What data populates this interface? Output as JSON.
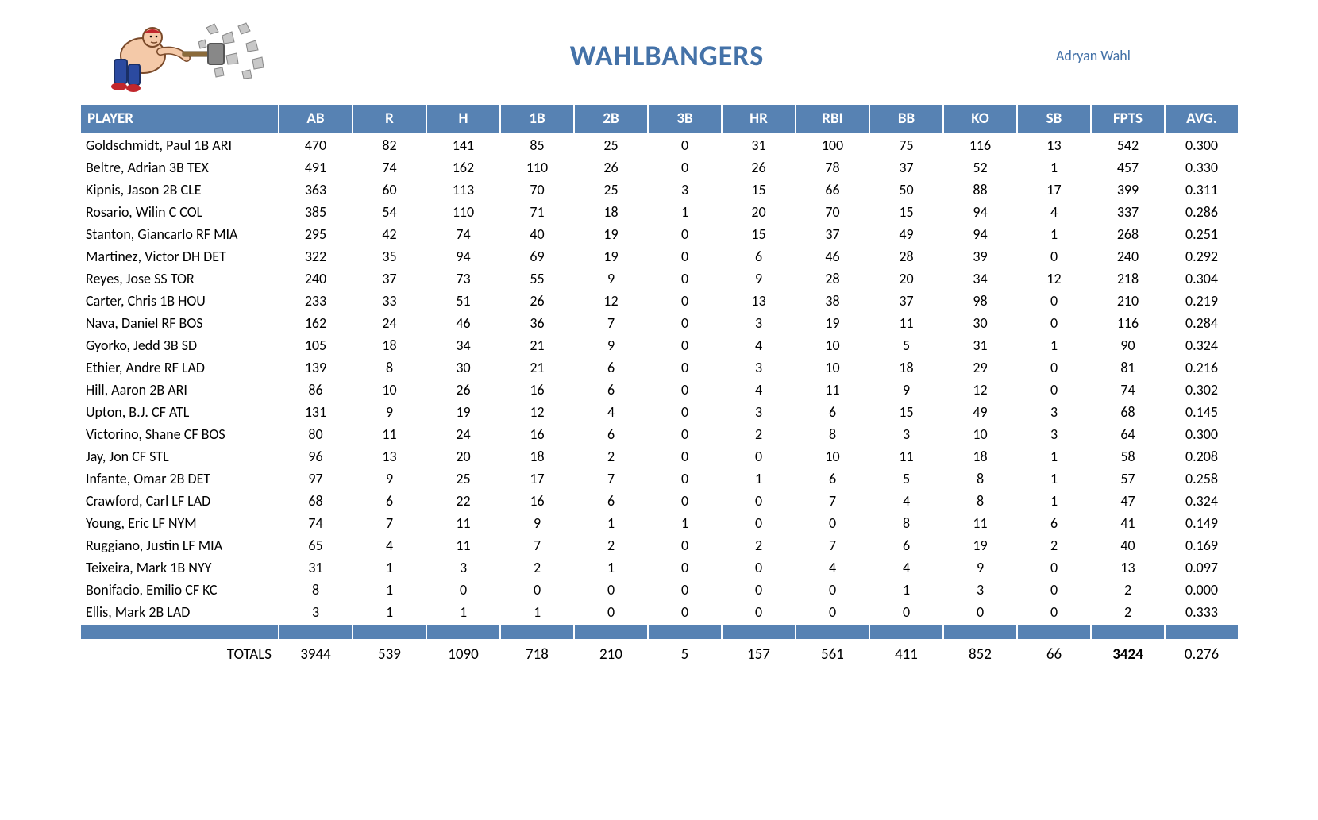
{
  "team": {
    "title": "WAHLBANGERS",
    "owner": "Adryan Wahl"
  },
  "styling": {
    "header_bg": "#5782b3",
    "header_fg": "#ffffff",
    "title_color": "#4472a8",
    "owner_color": "#4472a8",
    "body_bg": "#ffffff",
    "font_family": "Calibri",
    "title_fontsize": 36,
    "header_fontsize": 19,
    "cell_fontsize": 18
  },
  "columns": [
    {
      "key": "player",
      "label": "PLAYER",
      "align": "left"
    },
    {
      "key": "ab",
      "label": "AB"
    },
    {
      "key": "r",
      "label": "R"
    },
    {
      "key": "h",
      "label": "H"
    },
    {
      "key": "b1",
      "label": "1B"
    },
    {
      "key": "b2",
      "label": "2B"
    },
    {
      "key": "b3",
      "label": "3B"
    },
    {
      "key": "hr",
      "label": "HR"
    },
    {
      "key": "rbi",
      "label": "RBI"
    },
    {
      "key": "bb",
      "label": "BB"
    },
    {
      "key": "ko",
      "label": "KO"
    },
    {
      "key": "sb",
      "label": "SB"
    },
    {
      "key": "fpts",
      "label": "FPTS"
    },
    {
      "key": "avg",
      "label": "AVG."
    }
  ],
  "rows": [
    {
      "player": "Goldschmidt, Paul 1B ARI",
      "ab": "470",
      "r": "82",
      "h": "141",
      "b1": "85",
      "b2": "25",
      "b3": "0",
      "hr": "31",
      "rbi": "100",
      "bb": "75",
      "ko": "116",
      "sb": "13",
      "fpts": "542",
      "avg": "0.300"
    },
    {
      "player": "Beltre, Adrian 3B TEX",
      "ab": "491",
      "r": "74",
      "h": "162",
      "b1": "110",
      "b2": "26",
      "b3": "0",
      "hr": "26",
      "rbi": "78",
      "bb": "37",
      "ko": "52",
      "sb": "1",
      "fpts": "457",
      "avg": "0.330"
    },
    {
      "player": "Kipnis, Jason 2B CLE",
      "ab": "363",
      "r": "60",
      "h": "113",
      "b1": "70",
      "b2": "25",
      "b3": "3",
      "hr": "15",
      "rbi": "66",
      "bb": "50",
      "ko": "88",
      "sb": "17",
      "fpts": "399",
      "avg": "0.311"
    },
    {
      "player": "Rosario, Wilin C COL",
      "ab": "385",
      "r": "54",
      "h": "110",
      "b1": "71",
      "b2": "18",
      "b3": "1",
      "hr": "20",
      "rbi": "70",
      "bb": "15",
      "ko": "94",
      "sb": "4",
      "fpts": "337",
      "avg": "0.286"
    },
    {
      "player": "Stanton, Giancarlo RF MIA",
      "ab": "295",
      "r": "42",
      "h": "74",
      "b1": "40",
      "b2": "19",
      "b3": "0",
      "hr": "15",
      "rbi": "37",
      "bb": "49",
      "ko": "94",
      "sb": "1",
      "fpts": "268",
      "avg": "0.251"
    },
    {
      "player": "Martinez, Victor DH DET",
      "ab": "322",
      "r": "35",
      "h": "94",
      "b1": "69",
      "b2": "19",
      "b3": "0",
      "hr": "6",
      "rbi": "46",
      "bb": "28",
      "ko": "39",
      "sb": "0",
      "fpts": "240",
      "avg": "0.292"
    },
    {
      "player": "Reyes, Jose SS TOR",
      "ab": "240",
      "r": "37",
      "h": "73",
      "b1": "55",
      "b2": "9",
      "b3": "0",
      "hr": "9",
      "rbi": "28",
      "bb": "20",
      "ko": "34",
      "sb": "12",
      "fpts": "218",
      "avg": "0.304"
    },
    {
      "player": "Carter, Chris 1B HOU",
      "ab": "233",
      "r": "33",
      "h": "51",
      "b1": "26",
      "b2": "12",
      "b3": "0",
      "hr": "13",
      "rbi": "38",
      "bb": "37",
      "ko": "98",
      "sb": "0",
      "fpts": "210",
      "avg": "0.219"
    },
    {
      "player": "Nava, Daniel RF BOS",
      "ab": "162",
      "r": "24",
      "h": "46",
      "b1": "36",
      "b2": "7",
      "b3": "0",
      "hr": "3",
      "rbi": "19",
      "bb": "11",
      "ko": "30",
      "sb": "0",
      "fpts": "116",
      "avg": "0.284"
    },
    {
      "player": "Gyorko, Jedd 3B SD",
      "ab": "105",
      "r": "18",
      "h": "34",
      "b1": "21",
      "b2": "9",
      "b3": "0",
      "hr": "4",
      "rbi": "10",
      "bb": "5",
      "ko": "31",
      "sb": "1",
      "fpts": "90",
      "avg": "0.324"
    },
    {
      "player": "Ethier, Andre RF LAD",
      "ab": "139",
      "r": "8",
      "h": "30",
      "b1": "21",
      "b2": "6",
      "b3": "0",
      "hr": "3",
      "rbi": "10",
      "bb": "18",
      "ko": "29",
      "sb": "0",
      "fpts": "81",
      "avg": "0.216"
    },
    {
      "player": "Hill, Aaron 2B ARI",
      "ab": "86",
      "r": "10",
      "h": "26",
      "b1": "16",
      "b2": "6",
      "b3": "0",
      "hr": "4",
      "rbi": "11",
      "bb": "9",
      "ko": "12",
      "sb": "0",
      "fpts": "74",
      "avg": "0.302"
    },
    {
      "player": "Upton, B.J. CF ATL",
      "ab": "131",
      "r": "9",
      "h": "19",
      "b1": "12",
      "b2": "4",
      "b3": "0",
      "hr": "3",
      "rbi": "6",
      "bb": "15",
      "ko": "49",
      "sb": "3",
      "fpts": "68",
      "avg": "0.145"
    },
    {
      "player": "Victorino, Shane CF BOS",
      "ab": "80",
      "r": "11",
      "h": "24",
      "b1": "16",
      "b2": "6",
      "b3": "0",
      "hr": "2",
      "rbi": "8",
      "bb": "3",
      "ko": "10",
      "sb": "3",
      "fpts": "64",
      "avg": "0.300"
    },
    {
      "player": "Jay, Jon CF STL",
      "ab": "96",
      "r": "13",
      "h": "20",
      "b1": "18",
      "b2": "2",
      "b3": "0",
      "hr": "0",
      "rbi": "10",
      "bb": "11",
      "ko": "18",
      "sb": "1",
      "fpts": "58",
      "avg": "0.208"
    },
    {
      "player": "Infante, Omar 2B DET",
      "ab": "97",
      "r": "9",
      "h": "25",
      "b1": "17",
      "b2": "7",
      "b3": "0",
      "hr": "1",
      "rbi": "6",
      "bb": "5",
      "ko": "8",
      "sb": "1",
      "fpts": "57",
      "avg": "0.258"
    },
    {
      "player": "Crawford, Carl LF LAD",
      "ab": "68",
      "r": "6",
      "h": "22",
      "b1": "16",
      "b2": "6",
      "b3": "0",
      "hr": "0",
      "rbi": "7",
      "bb": "4",
      "ko": "8",
      "sb": "1",
      "fpts": "47",
      "avg": "0.324"
    },
    {
      "player": "Young, Eric LF NYM",
      "ab": "74",
      "r": "7",
      "h": "11",
      "b1": "9",
      "b2": "1",
      "b3": "1",
      "hr": "0",
      "rbi": "0",
      "bb": "8",
      "ko": "11",
      "sb": "6",
      "fpts": "41",
      "avg": "0.149"
    },
    {
      "player": "Ruggiano, Justin LF MIA",
      "ab": "65",
      "r": "4",
      "h": "11",
      "b1": "7",
      "b2": "2",
      "b3": "0",
      "hr": "2",
      "rbi": "7",
      "bb": "6",
      "ko": "19",
      "sb": "2",
      "fpts": "40",
      "avg": "0.169"
    },
    {
      "player": "Teixeira, Mark 1B NYY",
      "ab": "31",
      "r": "1",
      "h": "3",
      "b1": "2",
      "b2": "1",
      "b3": "0",
      "hr": "0",
      "rbi": "4",
      "bb": "4",
      "ko": "9",
      "sb": "0",
      "fpts": "13",
      "avg": "0.097"
    },
    {
      "player": "Bonifacio, Emilio CF KC",
      "ab": "8",
      "r": "1",
      "h": "0",
      "b1": "0",
      "b2": "0",
      "b3": "0",
      "hr": "0",
      "rbi": "0",
      "bb": "1",
      "ko": "3",
      "sb": "0",
      "fpts": "2",
      "avg": "0.000"
    },
    {
      "player": "Ellis, Mark 2B LAD",
      "ab": "3",
      "r": "1",
      "h": "1",
      "b1": "1",
      "b2": "0",
      "b3": "0",
      "hr": "0",
      "rbi": "0",
      "bb": "0",
      "ko": "0",
      "sb": "0",
      "fpts": "2",
      "avg": "0.333"
    }
  ],
  "totals": {
    "label": "TOTALS",
    "ab": "3944",
    "r": "539",
    "h": "1090",
    "b1": "718",
    "b2": "210",
    "b3": "5",
    "hr": "157",
    "rbi": "561",
    "bb": "411",
    "ko": "852",
    "sb": "66",
    "fpts": "3424",
    "avg": "0.276"
  }
}
